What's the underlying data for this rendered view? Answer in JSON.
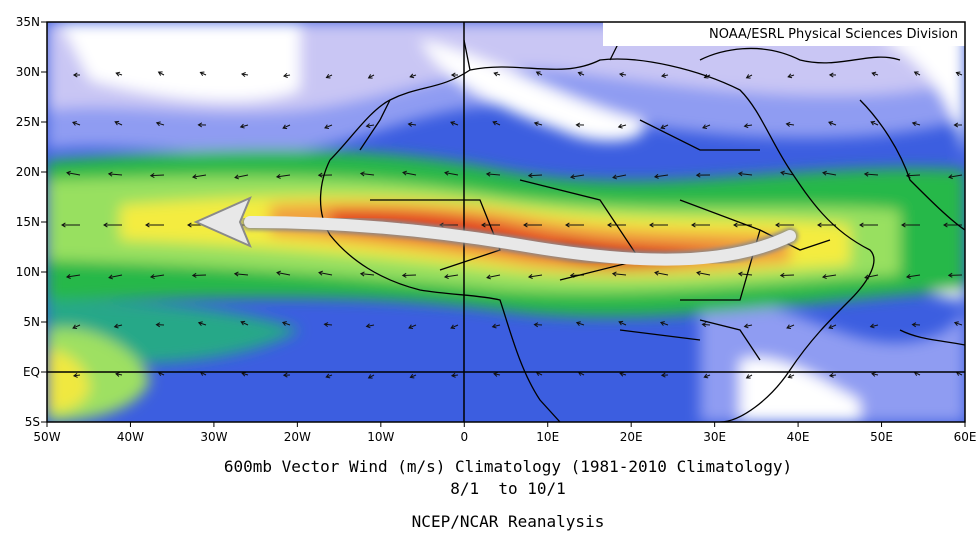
{
  "credit": "NOAA/ESRL Physical Sciences Division",
  "lat_labels": [
    "35N",
    "30N",
    "25N",
    "20N",
    "15N",
    "10N",
    "5N",
    "EQ",
    "5S"
  ],
  "lon_labels": [
    "50W",
    "40W",
    "30W",
    "20W",
    "10W",
    "0",
    "10E",
    "20E",
    "30E",
    "40E",
    "50E",
    "60E"
  ],
  "caption": {
    "line1": "600mb Vector Wind (m/s) Climatology (1981-2010 Climatology)",
    "line2": "8/1  to 10/1",
    "source": "NCEP/NCAR Reanalysis"
  }
}
